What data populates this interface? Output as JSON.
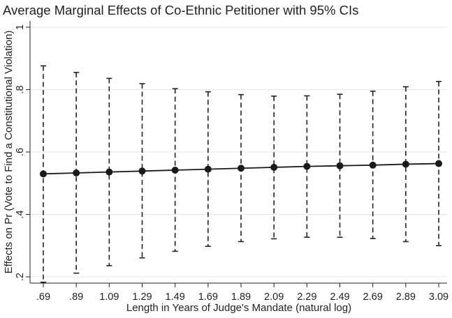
{
  "chart_data": {
    "type": "scatter",
    "title": "Average Marginal Effects of Co-Ethnic Petitioner with 95% CIs",
    "xlabel": "Length in Years of Judge's Mandate (natural log)",
    "ylabel": "Effects on Pr (Vote to Find a Constitutional Violation)",
    "x": [
      0.69,
      0.89,
      1.09,
      1.29,
      1.49,
      1.69,
      1.89,
      2.09,
      2.29,
      2.49,
      2.69,
      2.89,
      3.09
    ],
    "x_tick_labels": [
      ".69",
      ".89",
      "1.09",
      "1.29",
      "1.49",
      "1.69",
      "1.89",
      "2.09",
      "2.29",
      "2.49",
      "2.69",
      "2.89",
      "3.09"
    ],
    "y_ticks": [
      0.2,
      0.4,
      0.6,
      0.8,
      1
    ],
    "y_tick_labels": [
      ".2",
      ".4",
      ".6",
      ".8",
      "1"
    ],
    "xlim": [
      0.69,
      3.09
    ],
    "ylim": [
      0.18,
      1.02
    ],
    "grid": true,
    "series": [
      {
        "estimate": [
          0.53,
          0.533,
          0.536,
          0.539,
          0.542,
          0.545,
          0.548,
          0.551,
          0.554,
          0.556,
          0.558,
          0.561,
          0.563
        ],
        "ci_lower": [
          0.183,
          0.212,
          0.236,
          0.261,
          0.282,
          0.298,
          0.313,
          0.322,
          0.327,
          0.327,
          0.323,
          0.313,
          0.3
        ],
        "ci_upper": [
          0.876,
          0.855,
          0.836,
          0.819,
          0.803,
          0.793,
          0.784,
          0.779,
          0.78,
          0.785,
          0.795,
          0.809,
          0.826
        ]
      }
    ]
  }
}
